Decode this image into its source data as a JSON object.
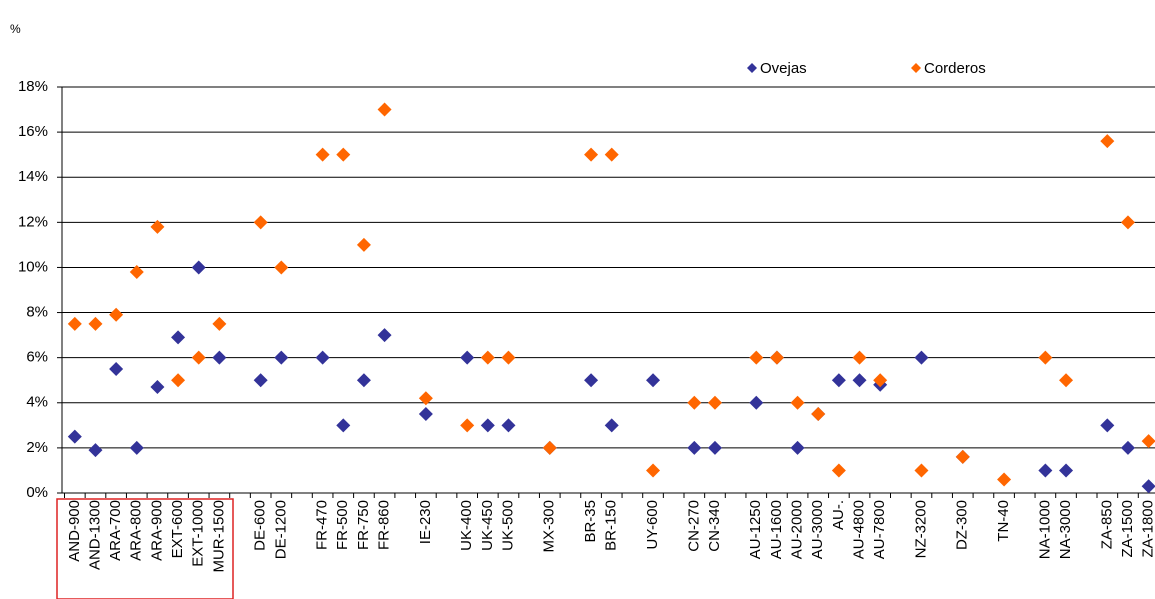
{
  "chart_data": {
    "type": "scatter",
    "y_unit_label": "%",
    "categories": [
      "AND-900",
      "AND-1300",
      "ARA-700",
      "ARA-800",
      "ARA-900",
      "EXT-600",
      "EXT-1000",
      "MUR-1500",
      null,
      "DE-600",
      "DE-1200",
      null,
      "FR-470",
      "FR-500",
      "FR-750",
      "FR-860",
      null,
      "IE-230",
      null,
      "UK-400",
      "UK-450",
      "UK-500",
      null,
      "MX-300",
      null,
      "BR-35",
      "BR-150",
      null,
      "UY-600",
      null,
      "CN-270",
      "CN-340",
      null,
      "AU-1250",
      "AU-1600",
      "AU-2000",
      "AU-3000",
      "AU-.",
      "AU-4800",
      "AU-7800",
      null,
      "NZ-3200",
      null,
      "DZ-300",
      null,
      "TN-40",
      null,
      "NA-1000",
      "NA-3000",
      null,
      "ZA-850",
      "ZA-1500",
      "ZA-1800"
    ],
    "series": [
      {
        "name": "Ovejas",
        "color": "#333399",
        "values": [
          2.5,
          1.9,
          5.5,
          2.0,
          4.7,
          6.9,
          10.0,
          6.0,
          null,
          5.0,
          6.0,
          null,
          6.0,
          3.0,
          5.0,
          7.0,
          null,
          3.5,
          null,
          6.0,
          3.0,
          3.0,
          null,
          2.0,
          null,
          5.0,
          3.0,
          null,
          5.0,
          null,
          2.0,
          2.0,
          null,
          4.0,
          6.0,
          2.0,
          3.5,
          5.0,
          5.0,
          4.8,
          null,
          6.0,
          null,
          1.6,
          null,
          null,
          null,
          1.0,
          1.0,
          null,
          3.0,
          2.0,
          0.3
        ]
      },
      {
        "name": "Corderos",
        "color": "#ff6600",
        "values": [
          7.5,
          7.5,
          7.9,
          9.8,
          11.8,
          5.0,
          6.0,
          7.5,
          null,
          12.0,
          10.0,
          null,
          15.0,
          15.0,
          11.0,
          17.0,
          null,
          4.2,
          null,
          3.0,
          6.0,
          6.0,
          null,
          2.0,
          null,
          15.0,
          15.0,
          null,
          1.0,
          null,
          4.0,
          4.0,
          null,
          6.0,
          6.0,
          4.0,
          3.5,
          1.0,
          6.0,
          5.0,
          null,
          1.0,
          null,
          1.6,
          null,
          0.6,
          null,
          6.0,
          5.0,
          null,
          15.6,
          12.0,
          2.3
        ]
      }
    ],
    "ylim": [
      0,
      18
    ],
    "yticks": [
      {
        "value": 0,
        "label": "0%"
      },
      {
        "value": 2,
        "label": "2%"
      },
      {
        "value": 4,
        "label": "4%"
      },
      {
        "value": 6,
        "label": "6%"
      },
      {
        "value": 8,
        "label": "8%"
      },
      {
        "value": 10,
        "label": "10%"
      },
      {
        "value": 12,
        "label": "12%"
      },
      {
        "value": 14,
        "label": "14%"
      },
      {
        "value": 16,
        "label": "16%"
      },
      {
        "value": 18,
        "label": "18%"
      }
    ],
    "grid": true
  }
}
